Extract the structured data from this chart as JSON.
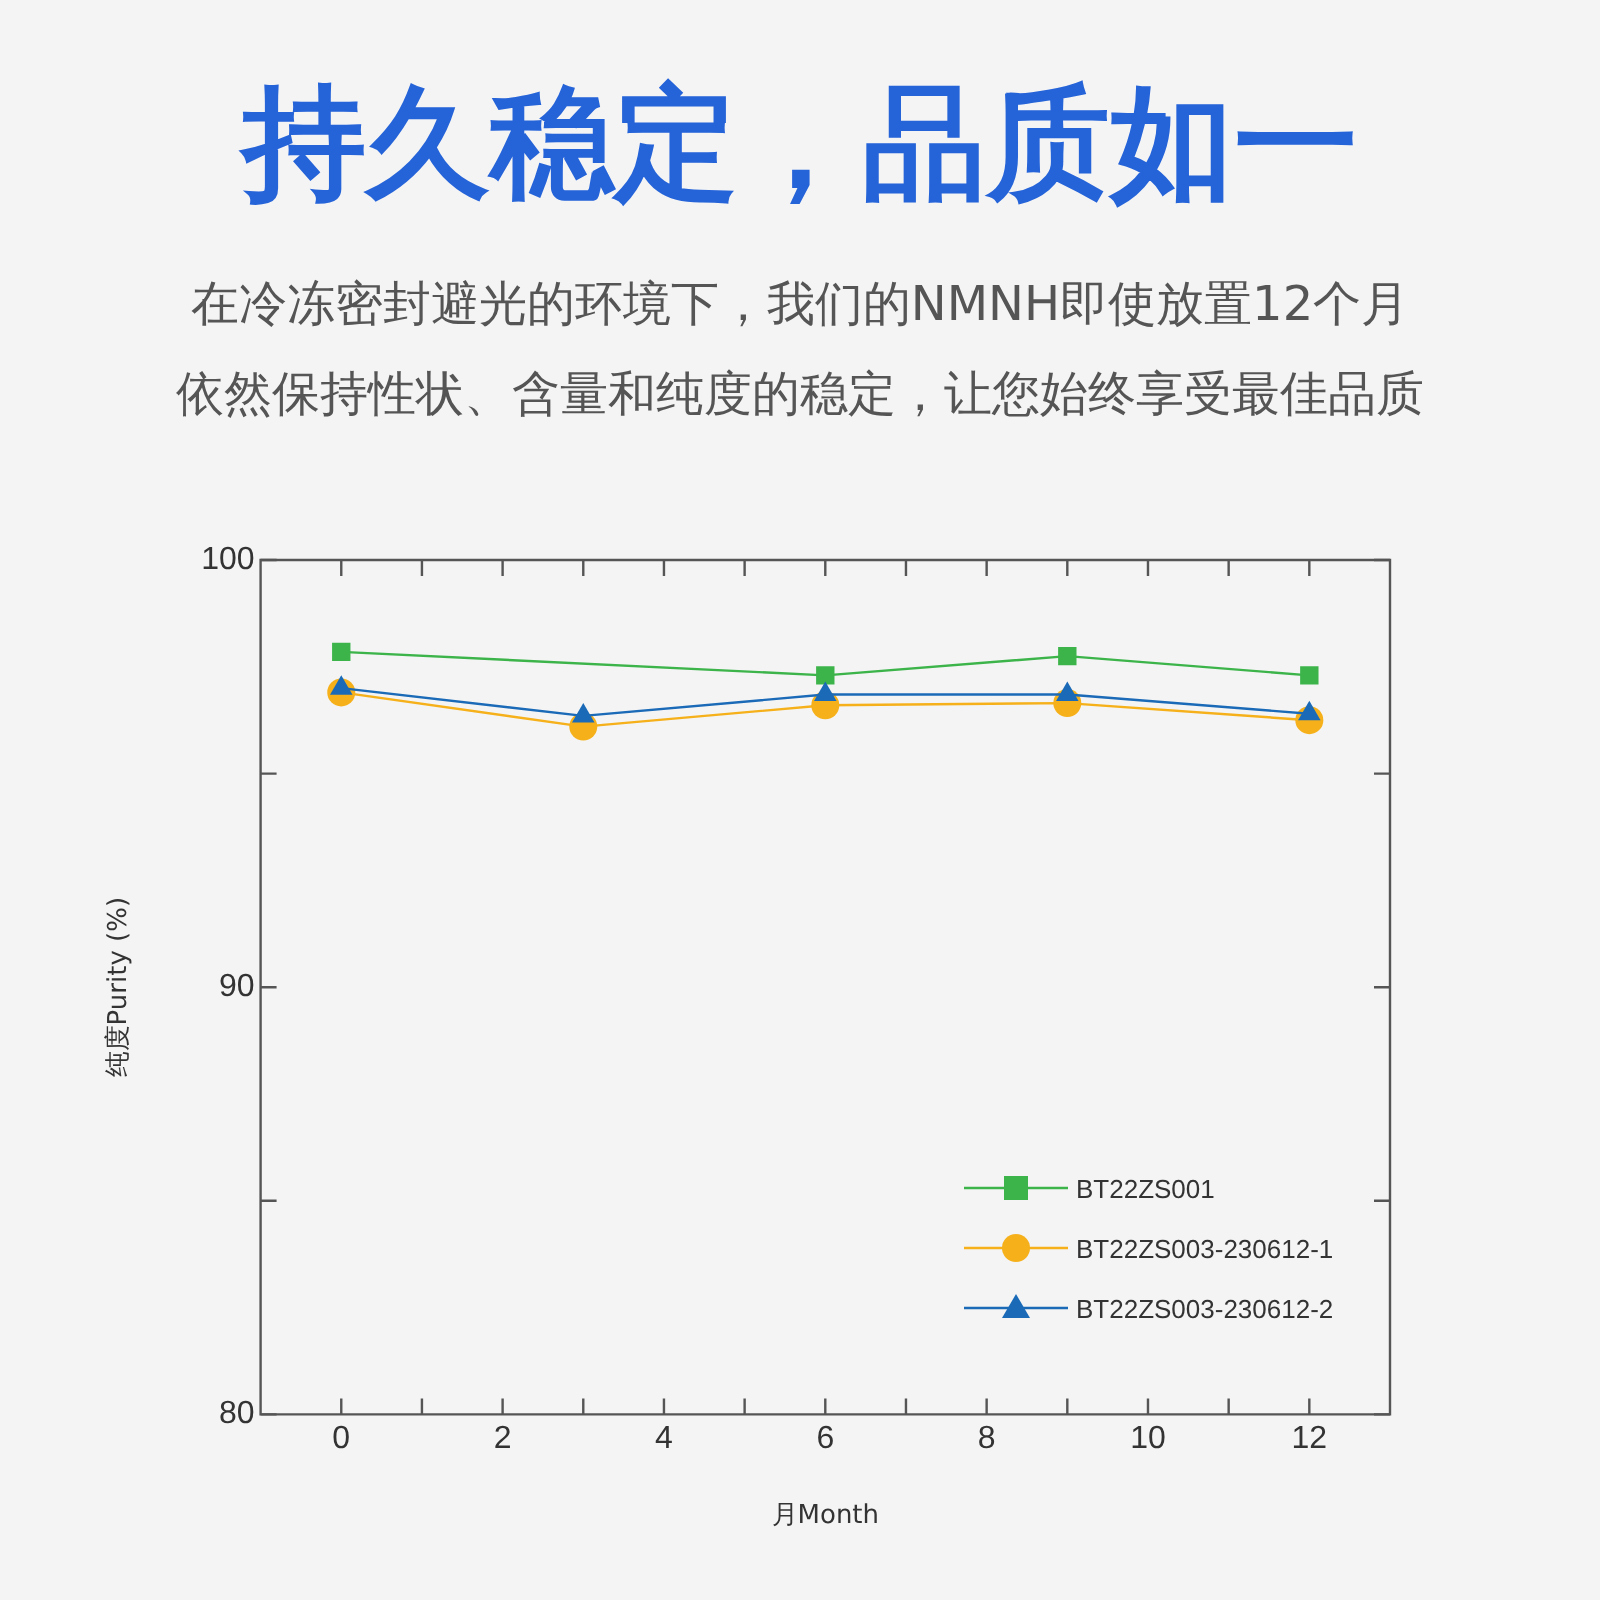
{
  "chart_data": {
    "type": "line",
    "title": "持久稳定，品质如一",
    "subtitle": "在冷冻密封避光的环境下，我们的NMNH即使放置12个月依然保持性状、含量和纯度的稳定，让您始终享受最佳品质",
    "xlabel": "月Month",
    "ylabel": "纯度Purity (%)",
    "xlim": [
      -1,
      13
    ],
    "xticks": [
      0,
      {
        "value": 1,
        "label": null
      },
      2,
      {
        "value": 3,
        "label": null
      },
      4,
      {
        "value": 5,
        "label": null
      },
      6,
      {
        "value": 7,
        "label": null
      },
      8,
      {
        "value": 9,
        "label": null
      },
      10,
      {
        "value": 11,
        "label": null
      },
      12
    ],
    "ylim": [
      80,
      100
    ],
    "yticks": [
      80,
      {
        "value": 85,
        "label": null
      },
      90,
      {
        "value": 95,
        "label": null
      },
      100
    ],
    "grid": false,
    "legend": "bottom right",
    "line_style": "solid",
    "series": [
      {
        "name": "BT22ZS001",
        "color": "#3cb44a",
        "marker": "square",
        "x": [
          0,
          6,
          9,
          12
        ],
        "values": [
          97.85,
          97.3,
          97.75,
          97.3
        ]
      },
      {
        "name": "BT22ZS003-230612-1",
        "color": "#f5b01a",
        "marker": "circle",
        "x": [
          0,
          3,
          6,
          9,
          12
        ],
        "values": [
          96.9,
          96.1,
          96.6,
          96.65,
          96.25
        ]
      },
      {
        "name": "BT22ZS003-230612-2",
        "color": "#1a6ab8",
        "marker": "triangle",
        "x": [
          0,
          3,
          6,
          9,
          12
        ],
        "values": [
          97.0,
          96.35,
          96.85,
          96.85,
          96.4
        ]
      }
    ]
  }
}
